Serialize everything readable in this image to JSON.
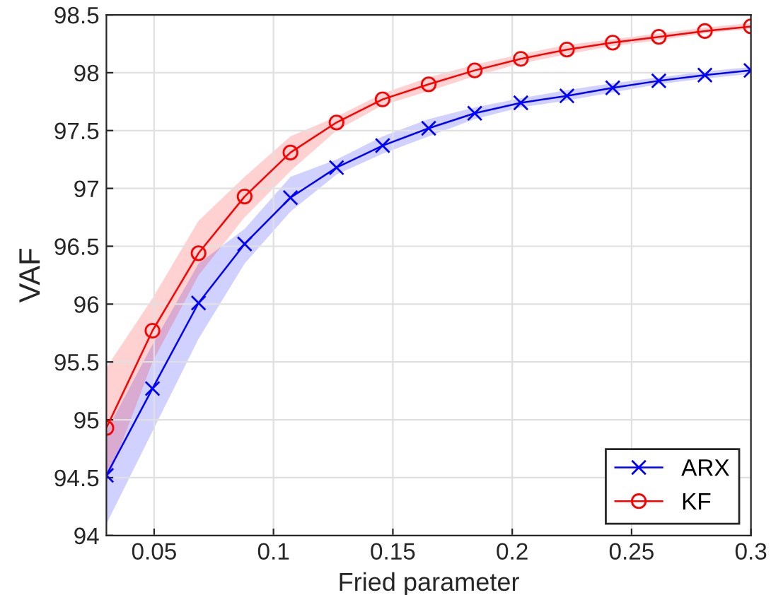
{
  "chart_data": {
    "type": "line",
    "xlabel": "Fried parameter",
    "ylabel": "VAF",
    "x": [
      0.03,
      0.0493,
      0.0686,
      0.0879,
      0.1071,
      0.1264,
      0.1457,
      0.165,
      0.1843,
      0.2036,
      0.2229,
      0.2421,
      0.2614,
      0.2807,
      0.3
    ],
    "series": [
      {
        "name": "ARX",
        "color": "#0000ff",
        "marker": "cross",
        "values": [
          94.52,
          95.27,
          96.01,
          96.52,
          96.92,
          97.18,
          97.37,
          97.52,
          97.65,
          97.74,
          97.8,
          97.87,
          97.93,
          97.98,
          98.02
        ],
        "lower": [
          94.1,
          94.9,
          95.7,
          96.35,
          96.8,
          97.12,
          97.3,
          97.45,
          97.6,
          97.7,
          97.76,
          97.83,
          97.9,
          97.95,
          97.99
        ],
        "upper": [
          94.9,
          95.65,
          96.35,
          96.65,
          97.1,
          97.25,
          97.45,
          97.6,
          97.7,
          97.78,
          97.85,
          97.91,
          97.96,
          98.01,
          98.05
        ]
      },
      {
        "name": "KF",
        "color": "#ff0000",
        "marker": "circle",
        "values": [
          94.93,
          95.77,
          96.44,
          96.93,
          97.31,
          97.57,
          97.77,
          97.9,
          98.02,
          98.12,
          98.2,
          98.26,
          98.31,
          98.36,
          98.4
        ],
        "lower": [
          94.45,
          95.5,
          96.25,
          96.75,
          97.15,
          97.5,
          97.72,
          97.84,
          97.97,
          98.08,
          98.16,
          98.23,
          98.28,
          98.34,
          98.38
        ],
        "upper": [
          95.45,
          96.05,
          96.72,
          97.1,
          97.45,
          97.62,
          97.82,
          97.96,
          98.07,
          98.16,
          98.24,
          98.29,
          98.34,
          98.39,
          98.43
        ]
      }
    ],
    "xlim": [
      0.03,
      0.3
    ],
    "ylim": [
      94,
      98.5
    ],
    "xticks": [
      0.05,
      0.1,
      0.15,
      0.2,
      0.25,
      0.3
    ],
    "yticks": [
      94,
      94.5,
      95,
      95.5,
      96,
      96.5,
      97,
      97.5,
      98,
      98.5
    ],
    "grid": true,
    "legend": "bottom right",
    "line_style": "solid"
  }
}
